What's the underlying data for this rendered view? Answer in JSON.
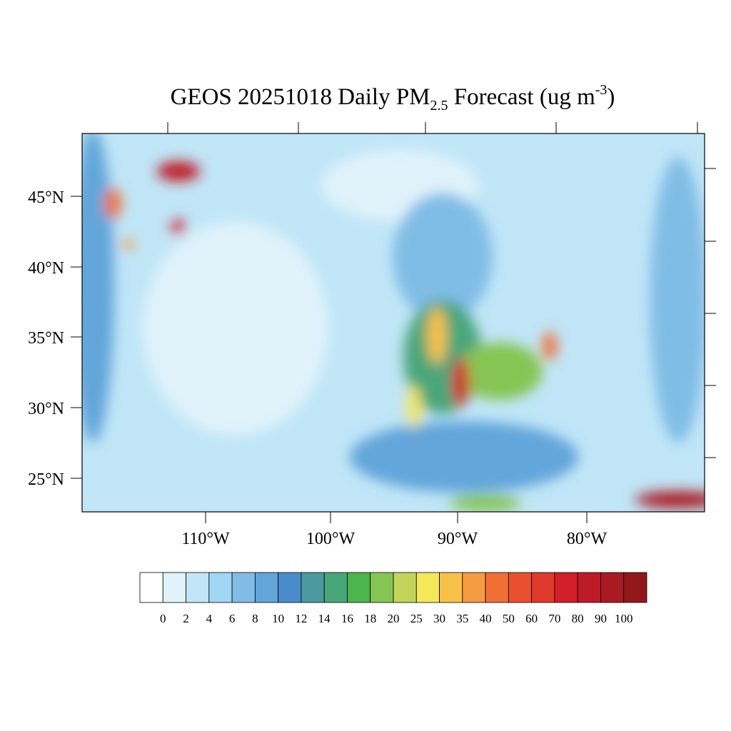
{
  "map": {
    "title": {
      "main": "GEOS 20251018 Daily PM",
      "sub": "2.5",
      "rest": " Forecast (ug m",
      "sup": "-3",
      "end": ")"
    },
    "lat_labels": [
      "45°N",
      "40°N",
      "35°N",
      "30°N",
      "25°N"
    ],
    "lon_labels": [
      "110°W",
      "100°W",
      "90°W",
      "80°W"
    ],
    "colorbar": {
      "levels": [
        0,
        2,
        4,
        6,
        8,
        10,
        12,
        14,
        16,
        18,
        20,
        25,
        30,
        35,
        40,
        50,
        60,
        70,
        80,
        90,
        100
      ],
      "colors": [
        "#ffffff",
        "#e0f3fb",
        "#c0e6f7",
        "#9fd7f4",
        "#80bde6",
        "#62a6da",
        "#4a8ccb",
        "#4b9aa0",
        "#48a67a",
        "#4cb54c",
        "#86c553",
        "#c3d45b",
        "#f5e75a",
        "#f8c24a",
        "#f59a40",
        "#f06f35",
        "#e9512e",
        "#df3a2a",
        "#d21f2a",
        "#be1b28",
        "#aa1a22",
        "#921719"
      ]
    }
  }
}
